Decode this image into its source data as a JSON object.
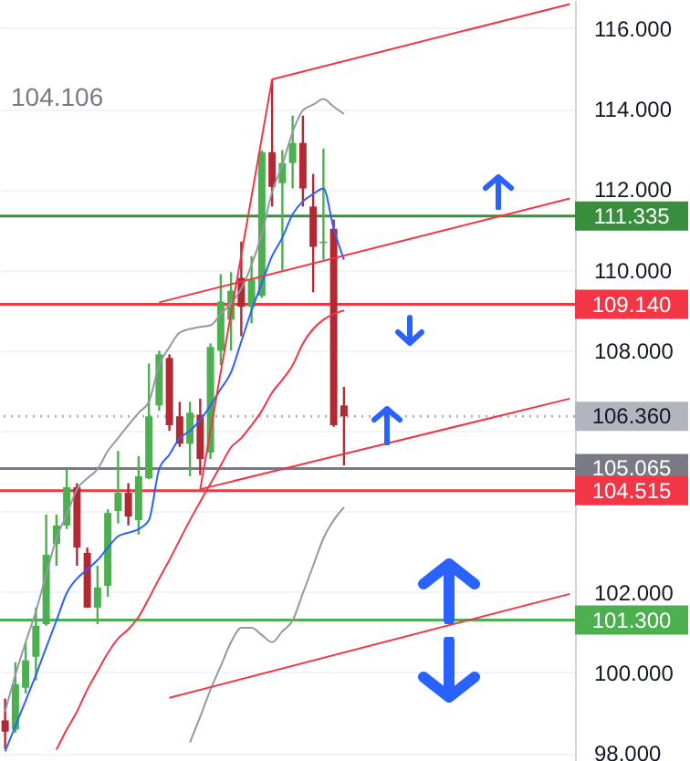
{
  "chart_data": {
    "type": "candlestick",
    "annotations": [
      "104.106"
    ],
    "categories": [
      null,
      null,
      null,
      null,
      null,
      null,
      null,
      null,
      null,
      null,
      null,
      null,
      null,
      null,
      null,
      null,
      null,
      null,
      null,
      null,
      null,
      null,
      null,
      null,
      null,
      null,
      null,
      null,
      null,
      null,
      null,
      null,
      null,
      null,
      null,
      null,
      null,
      null,
      null,
      null,
      null,
      null,
      null,
      null,
      null,
      null,
      null,
      null,
      null,
      null,
      null,
      null,
      null,
      null,
      null,
      null
    ],
    "ohlc": [
      [
        98.81,
        99.35,
        98.1,
        98.53
      ],
      [
        98.58,
        100.25,
        98.5,
        99.71
      ],
      [
        99.62,
        100.75,
        99.48,
        100.3
      ],
      [
        100.39,
        101.61,
        99.8,
        101.16
      ],
      [
        101.2,
        103.92,
        101.16,
        102.92
      ],
      [
        103.19,
        103.92,
        102.65,
        103.65
      ],
      [
        103.65,
        105.05,
        103.56,
        104.6
      ],
      [
        104.6,
        104.7,
        102.65,
        103.1
      ],
      [
        102.97,
        103.1,
        101.6,
        101.61
      ],
      [
        101.61,
        102.65,
        101.2,
        102.11
      ],
      [
        102.15,
        104.05,
        101.88,
        103.96
      ],
      [
        104.01,
        105.5,
        103.7,
        104.46
      ],
      [
        104.46,
        104.7,
        103.65,
        103.87
      ],
      [
        103.78,
        105.37,
        103.42,
        104.87
      ],
      [
        104.82,
        107.67,
        104.8,
        106.36
      ],
      [
        106.63,
        107.99,
        106.5,
        107.9
      ],
      [
        107.81,
        107.9,
        106.0,
        106.14
      ],
      [
        106.36,
        106.72,
        105.6,
        105.68
      ],
      [
        105.68,
        106.72,
        104.87,
        106.45
      ],
      [
        106.4,
        106.8,
        104.9,
        105.3
      ],
      [
        105.46,
        108.17,
        105.3,
        108.08
      ],
      [
        107.99,
        109.89,
        107.63,
        109.21
      ],
      [
        108.76,
        109.94,
        107.99,
        109.48
      ],
      [
        109.8,
        110.7,
        108.35,
        109.08
      ],
      [
        109.08,
        110.34,
        108.67,
        109.76
      ],
      [
        109.35,
        112.97,
        109.3,
        112.92
      ],
      [
        112.92,
        114.73,
        111.57,
        112.06
      ],
      [
        112.15,
        112.97,
        109.98,
        112.65
      ],
      [
        112.65,
        113.83,
        112.02,
        113.15
      ],
      [
        113.15,
        113.83,
        111.57,
        112.02
      ],
      [
        111.57,
        112.38,
        109.44,
        110.57
      ],
      [
        110.66,
        113.01,
        110.25,
        110.7
      ],
      [
        111.02,
        111.25,
        106.1,
        106.14
      ],
      [
        106.63,
        107.09,
        105.14,
        106.36
      ],
      null,
      null,
      null,
      null,
      null,
      null,
      null,
      null,
      null,
      null,
      null,
      null,
      null,
      null,
      null,
      null,
      null,
      null,
      null,
      null,
      null,
      null
    ],
    "colors": [
      "#b22833",
      "#4caf50",
      "#4caf50",
      "#4caf50",
      "#4caf50",
      "#4caf50",
      "#4caf50",
      "#b22833",
      "#b22833",
      "#4caf50",
      "#4caf50",
      "#4caf50",
      "#b22833",
      "#4caf50",
      "#4caf50",
      "#4caf50",
      "#b22833",
      "#b22833",
      "#4caf50",
      "#b22833",
      "#4caf50",
      "#4caf50",
      "#4caf50",
      "#b22833",
      "#4caf50",
      "#4caf50",
      "#b22833",
      "#4caf50",
      "#4caf50",
      "#b22833",
      "#b22833",
      "#4caf50",
      "#b22833",
      "#b22833",
      null,
      null,
      null,
      null,
      null,
      null,
      null,
      null,
      null,
      null,
      null,
      null,
      null,
      null,
      null,
      null,
      null,
      null,
      null,
      null,
      null,
      null
    ],
    "series": [
      {
        "type": "line",
        "color": "#9598a1",
        "values": [
          99.03,
          99.94,
          100.75,
          101.52,
          102.43,
          103.33,
          103.92,
          104.55,
          104.82,
          105.05,
          105.5,
          105.82,
          106.14,
          106.45,
          106.72,
          107.63,
          108.08,
          108.44,
          108.53,
          108.58,
          108.62,
          108.9,
          109.17,
          109.53,
          110.12,
          110.89,
          111.93,
          112.61,
          113.42,
          113.96,
          114.1,
          114.24,
          114.05,
          113.87,
          null,
          null,
          null,
          null,
          null,
          null,
          null,
          null,
          null,
          null,
          null,
          null,
          null,
          null,
          null,
          null,
          null,
          null,
          null,
          null,
          null,
          null
        ]
      },
      {
        "type": "line",
        "color": "#2962ff",
        "values": [
          98.04,
          98.67,
          99.3,
          99.94,
          100.62,
          101.29,
          101.97,
          102.33,
          102.56,
          102.79,
          103.1,
          103.38,
          103.47,
          103.56,
          103.78,
          105.05,
          105.41,
          105.82,
          106.0,
          106.27,
          106.63,
          107.04,
          107.45,
          108.22,
          108.99,
          109.67,
          110.34,
          110.8,
          111.38,
          111.7,
          111.88,
          112.02,
          111.02,
          110.25,
          null,
          null,
          null,
          null,
          null,
          null,
          null,
          null,
          null,
          null,
          null,
          null,
          null,
          null,
          null,
          null,
          null,
          null,
          null,
          null,
          null,
          null
        ]
      },
      {
        "type": "line",
        "color": "#f23645",
        "values": [
          null,
          null,
          null,
          null,
          null,
          98.08,
          98.58,
          99.03,
          99.57,
          100.03,
          100.48,
          100.84,
          101.07,
          101.38,
          101.84,
          102.33,
          102.79,
          103.29,
          103.78,
          104.24,
          104.69,
          105.14,
          105.59,
          105.82,
          106.14,
          106.5,
          106.95,
          107.27,
          107.63,
          108.17,
          108.53,
          108.76,
          108.9,
          108.99,
          null,
          null,
          null,
          null,
          null,
          null,
          null,
          null,
          null,
          null,
          null,
          null,
          null,
          null,
          null,
          null,
          null,
          null,
          null,
          null,
          null,
          null
        ]
      },
      {
        "type": "line",
        "color": "#9598a1",
        "values": [
          null,
          null,
          null,
          null,
          null,
          null,
          null,
          null,
          null,
          null,
          null,
          null,
          null,
          null,
          null,
          null,
          null,
          null,
          98.26,
          98.9,
          99.57,
          100.16,
          100.75,
          101.11,
          101.11,
          100.93,
          100.75,
          101.02,
          101.29,
          101.97,
          102.65,
          103.33,
          103.78,
          104.1,
          null,
          null,
          null,
          null,
          null,
          null,
          null,
          null,
          null,
          null,
          null,
          null,
          null,
          null,
          null,
          null,
          null,
          null,
          null,
          null,
          null,
          null
        ]
      },
      {
        "type": "line",
        "color": "#f23645",
        "values": [
          null,
          null,
          null,
          null,
          null,
          null,
          null,
          null,
          null,
          null,
          null,
          null,
          null,
          null,
          null,
          null,
          null,
          null,
          null,
          104.55,
          null,
          null,
          null,
          null,
          null,
          null,
          114.73,
          null,
          null,
          null,
          null,
          null,
          null,
          null,
          null,
          null,
          null,
          null,
          null,
          null,
          null,
          null,
          null,
          null,
          null,
          null,
          null,
          null,
          null,
          null,
          null,
          null,
          null,
          null,
          null,
          null
        ]
      },
      {
        "type": "line",
        "color": "#f23645",
        "values": [
          null,
          null,
          null,
          null,
          null,
          null,
          null,
          null,
          null,
          null,
          null,
          null,
          null,
          null,
          null,
          null,
          null,
          null,
          null,
          null,
          null,
          null,
          null,
          null,
          null,
          null,
          114.73,
          null,
          null,
          null,
          null,
          null,
          null,
          null,
          null,
          null,
          null,
          null,
          null,
          null,
          null,
          null,
          null,
          null,
          null,
          null,
          null,
          null,
          null,
          null,
          null,
          null,
          null,
          null,
          null,
          116.6
        ]
      },
      {
        "type": "line",
        "color": "#f23645",
        "values": [
          null,
          null,
          null,
          null,
          null,
          null,
          null,
          null,
          null,
          null,
          null,
          null,
          null,
          null,
          null,
          109.19,
          null,
          null,
          null,
          null,
          null,
          null,
          null,
          null,
          null,
          null,
          null,
          null,
          null,
          null,
          null,
          null,
          null,
          null,
          null,
          null,
          null,
          null,
          null,
          null,
          null,
          null,
          null,
          null,
          null,
          null,
          null,
          null,
          null,
          null,
          null,
          null,
          null,
          null,
          null,
          111.77
        ]
      },
      {
        "type": "line",
        "color": "#f23645",
        "values": [
          null,
          null,
          null,
          null,
          null,
          null,
          null,
          null,
          null,
          null,
          null,
          null,
          null,
          null,
          null,
          null,
          null,
          null,
          null,
          104.55,
          null,
          null,
          null,
          null,
          null,
          null,
          null,
          null,
          null,
          null,
          null,
          null,
          null,
          null,
          null,
          null,
          null,
          null,
          null,
          null,
          null,
          null,
          null,
          null,
          null,
          null,
          null,
          null,
          null,
          null,
          null,
          null,
          null,
          null,
          null,
          106.8
        ]
      },
      {
        "type": "line",
        "color": "#f23645",
        "values": [
          null,
          null,
          null,
          null,
          null,
          null,
          null,
          null,
          null,
          null,
          null,
          null,
          null,
          null,
          null,
          null,
          99.37,
          null,
          null,
          null,
          null,
          null,
          null,
          null,
          null,
          null,
          null,
          null,
          null,
          null,
          null,
          null,
          null,
          null,
          null,
          null,
          null,
          null,
          null,
          null,
          null,
          null,
          null,
          null,
          null,
          null,
          null,
          null,
          null,
          null,
          null,
          null,
          null,
          null,
          null,
          101.95
        ]
      }
    ],
    "ref_lines": [
      {
        "axis": "y",
        "value": 111.335,
        "label": "111.335",
        "color": "#388e3c",
        "line_style": "solid"
      },
      {
        "axis": "y",
        "value": 109.14,
        "label": "109.140",
        "color": "#f23645",
        "line_style": "solid"
      },
      {
        "axis": "y",
        "value": 106.36,
        "label": "106.360",
        "color": "#b2b5be",
        "line_style": "dotted"
      },
      {
        "axis": "y",
        "value": 105.065,
        "label": "105.065",
        "color": "#787b86",
        "line_style": "solid"
      },
      {
        "axis": "y",
        "value": 104.515,
        "label": "104.515",
        "color": "#f23645",
        "line_style": "solid"
      },
      {
        "axis": "y",
        "value": 101.3,
        "label": "101.300",
        "color": "#4caf50",
        "line_style": "solid"
      }
    ],
    "ylim": [
      97.8,
      116.7
    ],
    "yticks": [
      {
        "value": 98,
        "label": "98.000"
      },
      {
        "value": 100,
        "label": "100.000"
      },
      {
        "value": 102,
        "label": "102.000"
      },
      {
        "value": 104,
        "label": null
      },
      {
        "value": 106,
        "label": null
      },
      {
        "value": 108,
        "label": "108.000"
      },
      {
        "value": 110,
        "label": "110.000"
      },
      {
        "value": 112,
        "label": "112.000"
      },
      {
        "value": 114,
        "label": "114.000"
      },
      {
        "value": 116,
        "label": "116.000"
      }
    ],
    "grid": "y"
  }
}
